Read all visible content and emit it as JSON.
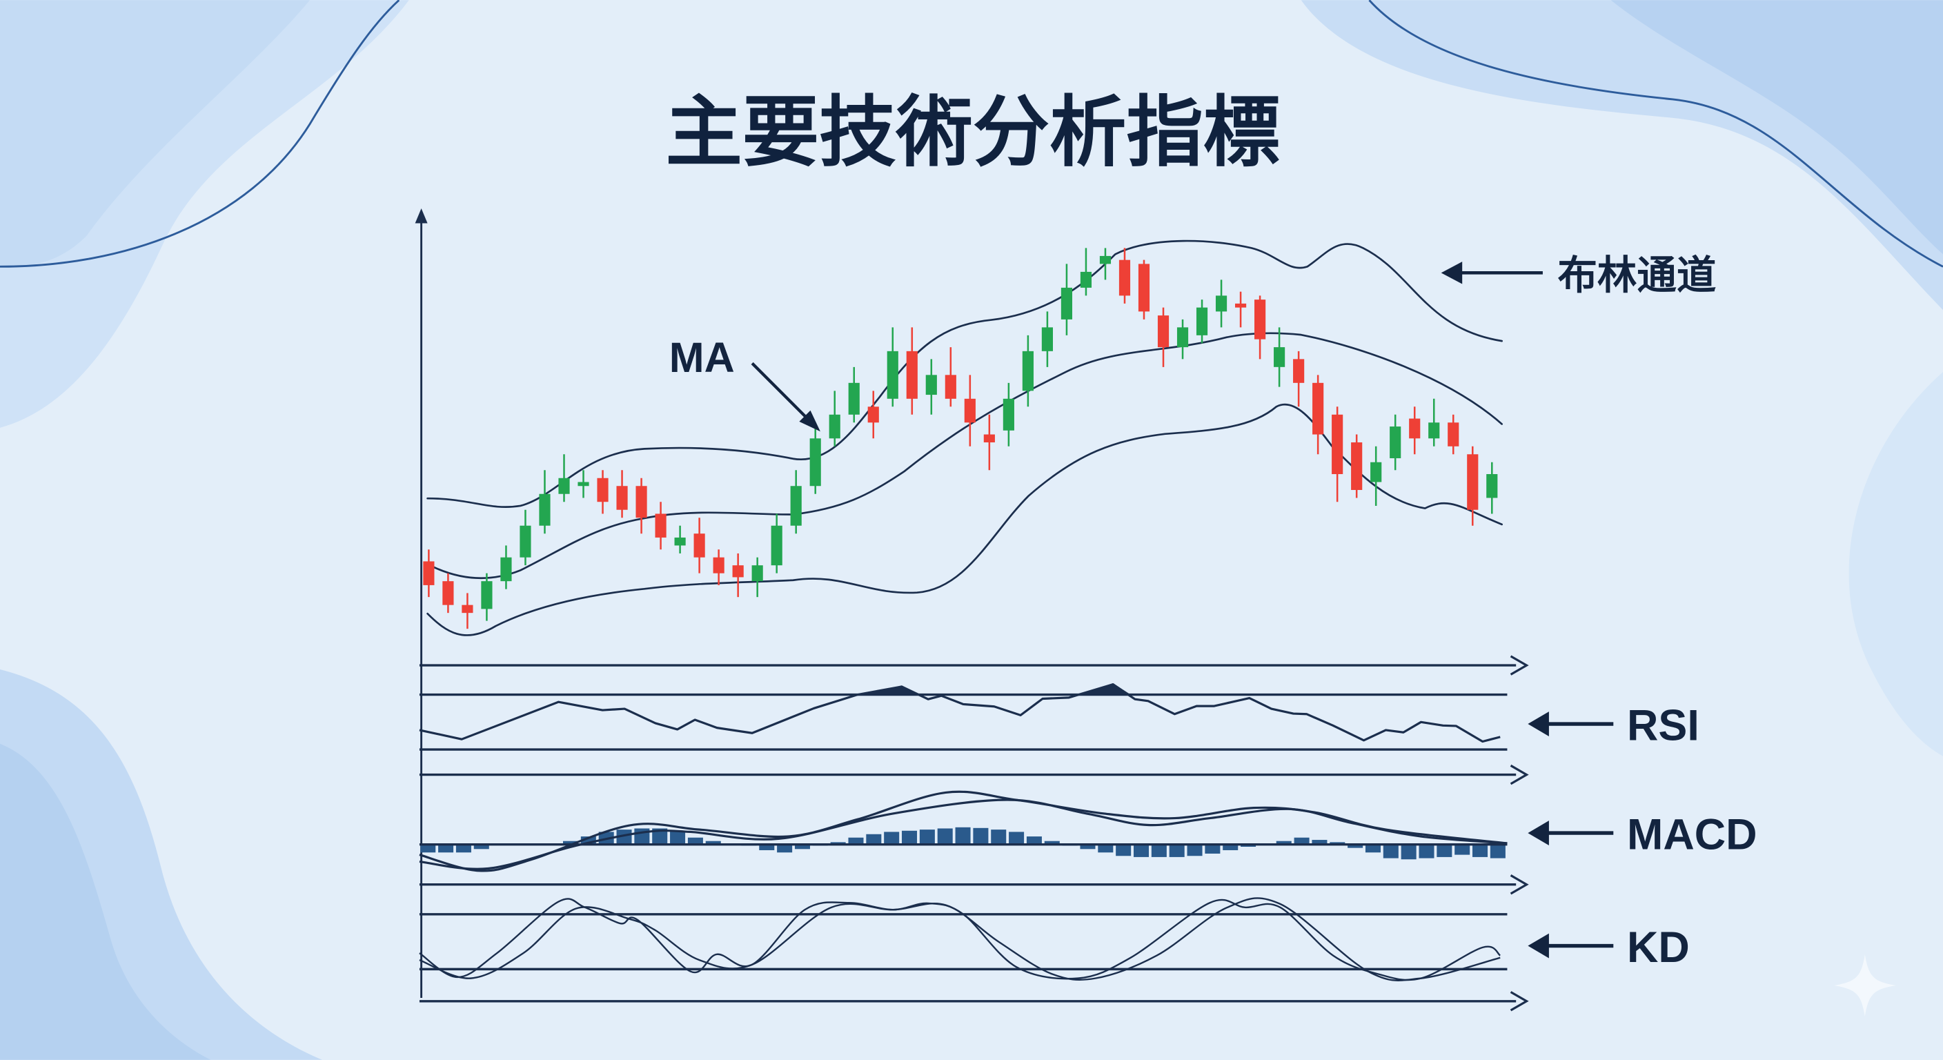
{
  "title": "主要技術分析指標",
  "labels": {
    "ma": "MA",
    "bollinger": "布林通道",
    "rsi": "RSI",
    "macd": "MACD",
    "kd": "KD"
  },
  "colors": {
    "background": "#e3eef9",
    "up_candle": "#23a650",
    "down_candle": "#ee4036",
    "line": "#1b2e4d",
    "macd_bar": "#2a5a8c"
  },
  "icons": [
    "arrow-left-icon",
    "sparkle-icon"
  ],
  "chart_data": {
    "type": "candlestick",
    "candles": {
      "open": [
        21,
        16,
        10,
        9,
        16,
        22,
        30,
        38,
        40,
        42,
        40,
        40,
        33,
        25,
        28,
        22,
        20,
        16,
        20,
        30,
        40,
        52,
        58,
        60,
        62,
        74,
        63,
        68,
        62,
        53,
        54,
        64,
        74,
        82,
        90,
        96,
        97,
        96,
        83,
        75,
        78,
        84,
        86,
        87,
        70,
        72,
        66,
        58,
        51,
        41,
        47,
        57,
        52,
        56,
        48,
        37
      ],
      "close": [
        15,
        10,
        8,
        16,
        22,
        30,
        38,
        42,
        41,
        36,
        34,
        32,
        27,
        27,
        22,
        18,
        17,
        20,
        30,
        40,
        52,
        58,
        66,
        56,
        74,
        62,
        68,
        62,
        56,
        51,
        62,
        74,
        80,
        90,
        94,
        98,
        88,
        84,
        75,
        80,
        85,
        88,
        85,
        77,
        75,
        66,
        53,
        43,
        39,
        46,
        55,
        52,
        56,
        50,
        34,
        43
      ],
      "high": [
        24,
        18,
        13,
        18,
        25,
        34,
        44,
        48,
        44,
        44,
        44,
        42,
        36,
        30,
        32,
        24,
        23,
        22,
        33,
        44,
        56,
        64,
        70,
        64,
        80,
        80,
        72,
        75,
        68,
        58,
        66,
        78,
        84,
        96,
        100,
        100,
        100,
        97,
        85,
        82,
        87,
        92,
        89,
        88,
        80,
        74,
        68,
        60,
        53,
        50,
        58,
        60,
        62,
        58,
        50,
        46
      ],
      "low": [
        12,
        8,
        4,
        6,
        14,
        20,
        28,
        36,
        37,
        33,
        32,
        28,
        24,
        23,
        18,
        15,
        12,
        12,
        18,
        28,
        38,
        50,
        56,
        52,
        60,
        58,
        58,
        60,
        50,
        44,
        50,
        60,
        70,
        78,
        88,
        92,
        86,
        82,
        70,
        72,
        76,
        80,
        80,
        72,
        65,
        60,
        48,
        36,
        37,
        35,
        44,
        48,
        50,
        48,
        30,
        33
      ]
    },
    "macd_histogram": [
      -35,
      -35,
      -35,
      -20,
      0,
      0,
      0,
      0,
      15,
      35,
      55,
      65,
      70,
      70,
      60,
      30,
      15,
      0,
      -5,
      -25,
      -35,
      -20,
      -5,
      10,
      30,
      45,
      55,
      60,
      65,
      70,
      75,
      72,
      65,
      55,
      35,
      15,
      -5,
      -20,
      -35,
      -50,
      -55,
      -55,
      -55,
      -50,
      -40,
      -25,
      -10,
      5,
      15,
      30,
      20,
      10,
      -15,
      -35,
      -60,
      -65,
      -60,
      -55,
      -45,
      -55,
      -60
    ]
  }
}
